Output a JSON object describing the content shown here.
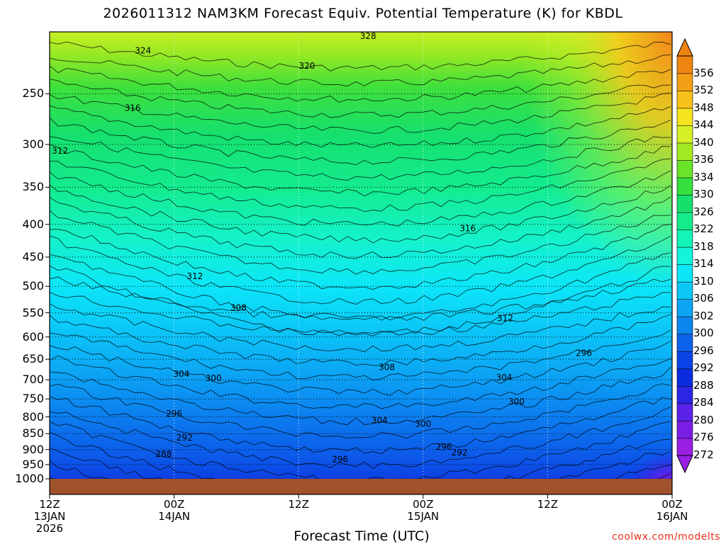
{
  "title": "2026011312 NAM3KM Forecast Equiv. Potential Temperature (K) for KBDL",
  "credit": "coolwx.com/modelts",
  "chart_data": {
    "type": "heatmap",
    "title": "2026011312 NAM3KM Forecast Equiv. Potential Temperature (K) for KBDL",
    "xlabel": "Forecast Time (UTC)",
    "ylabel": "",
    "x_range_hours": [
      0,
      60
    ],
    "y_range_hpa": [
      200,
      1000
    ],
    "y_scale": "log-pressure (inverted)",
    "grid": true,
    "x_ticks": [
      {
        "hours": 0,
        "lines": [
          "12Z",
          "13JAN",
          "2026"
        ]
      },
      {
        "hours": 12,
        "lines": [
          "00Z",
          "14JAN"
        ]
      },
      {
        "hours": 24,
        "lines": [
          "12Z"
        ]
      },
      {
        "hours": 36,
        "lines": [
          "00Z",
          "15JAN"
        ]
      },
      {
        "hours": 48,
        "lines": [
          "12Z"
        ]
      },
      {
        "hours": 60,
        "lines": [
          "00Z",
          "16JAN"
        ]
      }
    ],
    "y_ticks": [
      250,
      300,
      350,
      400,
      450,
      500,
      550,
      600,
      650,
      700,
      750,
      800,
      850,
      900,
      950,
      1000
    ],
    "colorbar_levels": [
      272,
      276,
      280,
      284,
      288,
      292,
      296,
      300,
      302,
      306,
      310,
      314,
      318,
      322,
      326,
      330,
      334,
      336,
      340,
      344,
      348,
      352,
      356
    ],
    "colorbar_colors": [
      "#9a20e4",
      "#7a1ee6",
      "#5a22e8",
      "#2c25e6",
      "#0a2ce0",
      "#0a44e6",
      "#0c62ea",
      "#0c86ee",
      "#0ca6f4",
      "#0cc8f8",
      "#0ce6f8",
      "#12f4dc",
      "#14f4b6",
      "#14ec8c",
      "#16e06c",
      "#34e03e",
      "#6ae42a",
      "#a4ea22",
      "#d6f026",
      "#f6e41e",
      "#f8c01a",
      "#f4a016",
      "#ee8412"
    ],
    "isotherm_labels": [
      {
        "value": 328,
        "hours": 30.7,
        "hpa": 203
      },
      {
        "value": 324,
        "hours": 9.0,
        "hpa": 214
      },
      {
        "value": 320,
        "hours": 24.8,
        "hpa": 226
      },
      {
        "value": 316,
        "hours": 8.0,
        "hpa": 263
      },
      {
        "value": 316,
        "hours": 40.3,
        "hpa": 406
      },
      {
        "value": 312,
        "hours": 1.0,
        "hpa": 307
      },
      {
        "value": 312,
        "hours": 14.0,
        "hpa": 482
      },
      {
        "value": 312,
        "hours": 43.9,
        "hpa": 561
      },
      {
        "value": 308,
        "hours": 18.2,
        "hpa": 540
      },
      {
        "value": 308,
        "hours": 32.5,
        "hpa": 669
      },
      {
        "value": 304,
        "hours": 12.7,
        "hpa": 686
      },
      {
        "value": 304,
        "hours": 31.8,
        "hpa": 810
      },
      {
        "value": 304,
        "hours": 43.8,
        "hpa": 694
      },
      {
        "value": 300,
        "hours": 15.8,
        "hpa": 696
      },
      {
        "value": 300,
        "hours": 36.0,
        "hpa": 821
      },
      {
        "value": 300,
        "hours": 45.0,
        "hpa": 757
      },
      {
        "value": 296,
        "hours": 12.0,
        "hpa": 791
      },
      {
        "value": 296,
        "hours": 28.0,
        "hpa": 932
      },
      {
        "value": 296,
        "hours": 38.0,
        "hpa": 891
      },
      {
        "value": 296,
        "hours": 51.5,
        "hpa": 636
      },
      {
        "value": 292,
        "hours": 13.0,
        "hpa": 863
      },
      {
        "value": 292,
        "hours": 39.5,
        "hpa": 910
      },
      {
        "value": 288,
        "hours": 11.0,
        "hpa": 915
      }
    ]
  },
  "icons": [
    "arrow-up-icon",
    "arrow-down-icon"
  ]
}
